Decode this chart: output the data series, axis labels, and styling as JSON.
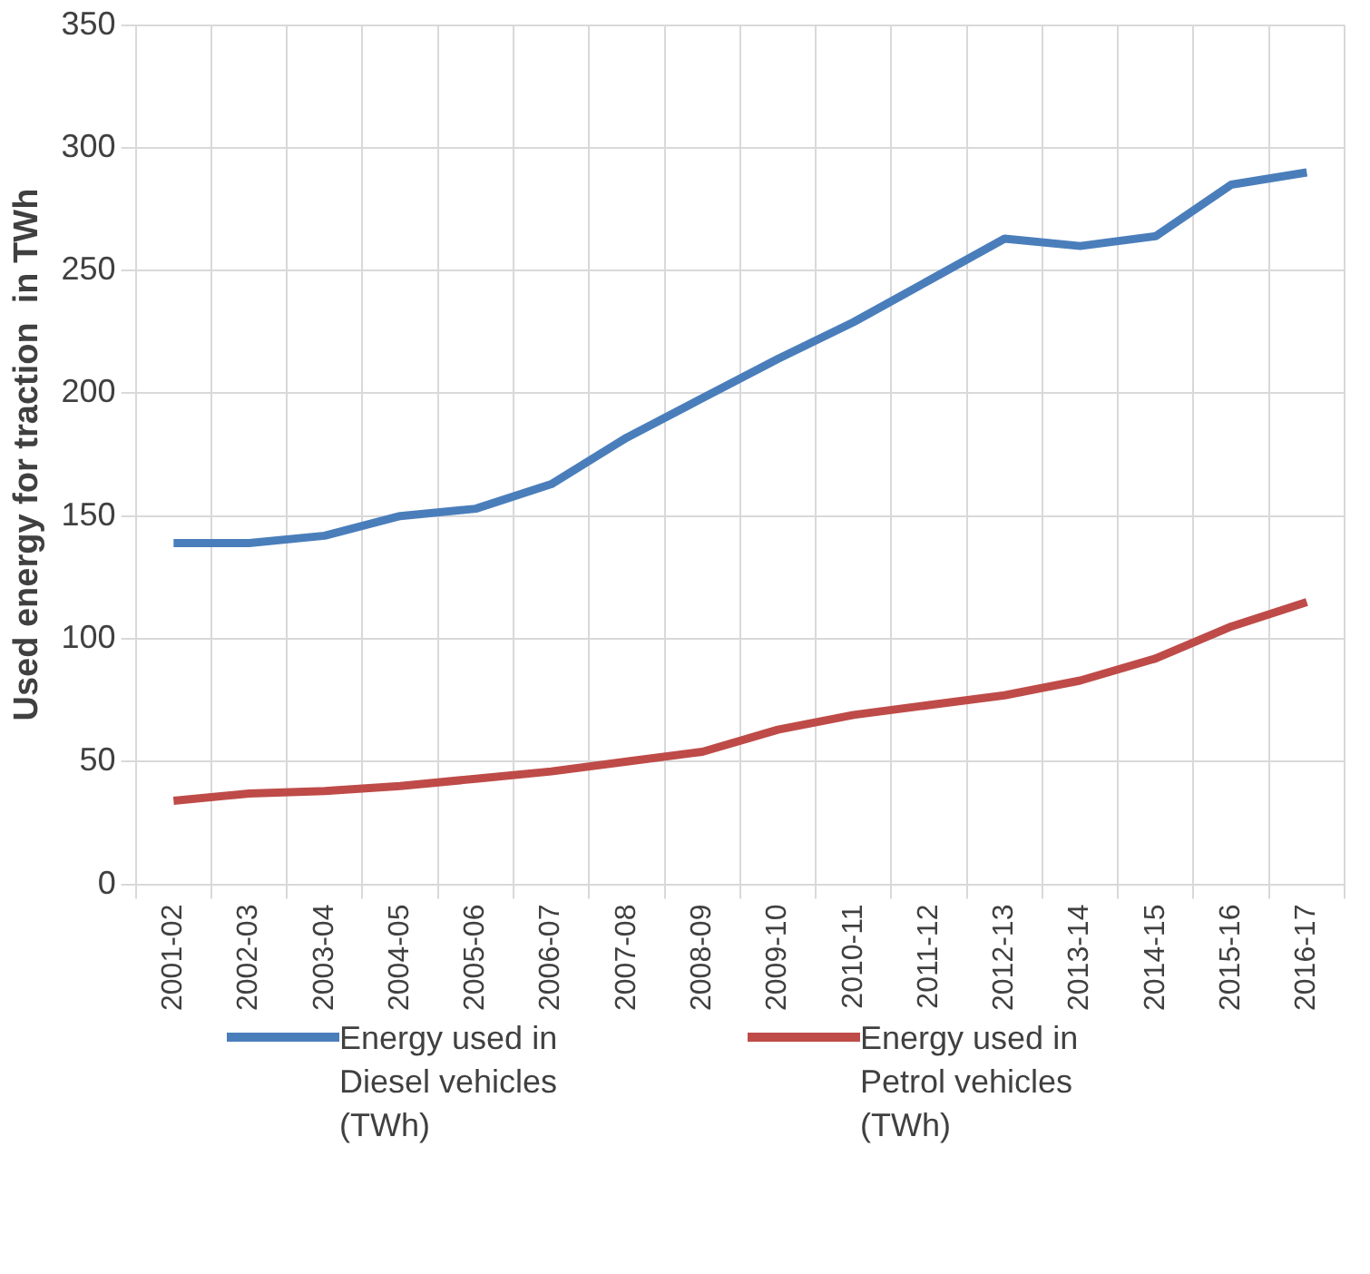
{
  "chart_data": {
    "type": "line",
    "ylabel": "Used energy for traction  in TWh",
    "categories": [
      "2001-02",
      "2002-03",
      "2003-04",
      "2004-05",
      "2005-06",
      "2006-07",
      "2007-08",
      "2008-09",
      "2009-10",
      "2010-11",
      "2011-12",
      "2012-13",
      "2013-14",
      "2014-15",
      "2015-16",
      "2016-17"
    ],
    "series": [
      {
        "name": "Energy used in Diesel vehicles (TWh)",
        "color": "#4a7ebb",
        "values": [
          139,
          139,
          142,
          150,
          153,
          163,
          182,
          198,
          214,
          229,
          246,
          263,
          260,
          264,
          285,
          290
        ]
      },
      {
        "name": "Energy used in Petrol vehicles (TWh)",
        "color": "#be4b48",
        "values": [
          34,
          37,
          38,
          40,
          43,
          46,
          50,
          54,
          63,
          69,
          73,
          77,
          83,
          92,
          105,
          115
        ]
      }
    ],
    "ylim": [
      0,
      350
    ],
    "yticks": [
      0,
      50,
      100,
      150,
      200,
      250,
      300,
      350
    ],
    "grid": true,
    "legend": "bottom",
    "marker": "none",
    "line_style": "solid"
  }
}
